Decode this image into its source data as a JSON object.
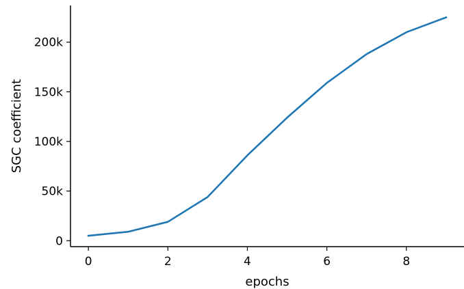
{
  "chart_data": {
    "type": "line",
    "title": "",
    "xlabel": "epochs",
    "ylabel": "SGC coefficient",
    "xlim": [
      -0.45,
      9.45
    ],
    "ylim": [
      -6000,
      237000
    ],
    "xticks": [
      0,
      2,
      4,
      6,
      8
    ],
    "xtick_labels": [
      "0",
      "2",
      "4",
      "6",
      "8"
    ],
    "yticks": [
      0,
      50000,
      100000,
      150000,
      200000
    ],
    "ytick_labels": [
      "0",
      "50k",
      "100k",
      "150k",
      "200k"
    ],
    "grid": false,
    "legend": "none",
    "series": [
      {
        "color": "#1f77b4",
        "x": [
          0,
          1,
          2,
          3,
          4,
          5,
          6,
          7,
          8,
          9
        ],
        "y": [
          5000,
          9000,
          19000,
          44000,
          86000,
          124000,
          159000,
          188000,
          210000,
          225000
        ]
      }
    ]
  }
}
